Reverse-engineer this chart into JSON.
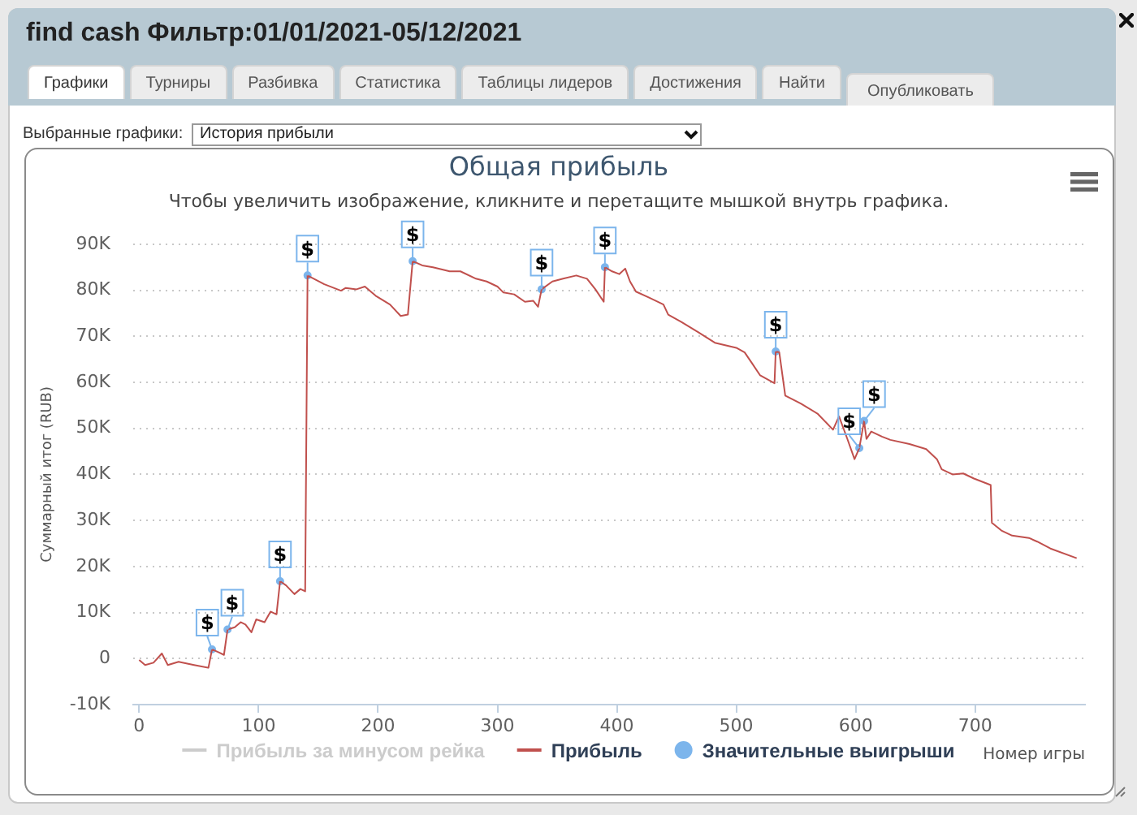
{
  "chart_data": {
    "type": "line",
    "title": "Общая прибыль",
    "subtitle": "Чтобы увеличить изображение, кликните и перетащите мышкой внутрь графика.",
    "xlabel": "Номер игры",
    "ylabel": "Суммарный итог (RUB)",
    "annotations": [
      "find cash Фильтр:01/01/2021-05/12/2021",
      "Графики",
      "Турниры",
      "Разбивка",
      "Статистика",
      "Таблицы лидеров",
      "Достижения",
      "Найти",
      "Опубликовать",
      "Выбранные графики:",
      "История прибыли"
    ],
    "series": [
      {
        "name": "Прибыль за минусом рейка",
        "color": "#cccccc"
      },
      {
        "name": "Прибыль",
        "color": "#c0504d",
        "marker": "none",
        "x": [
          0,
          5,
          12,
          19,
          24,
          33,
          46,
          58,
          61,
          67,
          71,
          74,
          80,
          85,
          89,
          94,
          98,
          105,
          110,
          115,
          118,
          123,
          130,
          135,
          139,
          141,
          155,
          169,
          173,
          182,
          189,
          198,
          210,
          219,
          225,
          229,
          237,
          246,
          260,
          269,
          282,
          291,
          300,
          305,
          314,
          323,
          330,
          334,
          337,
          346,
          355,
          366,
          375,
          382,
          389,
          390,
          396,
          402,
          407,
          411,
          416,
          427,
          439,
          443,
          454,
          468,
          482,
          500,
          507,
          513,
          520,
          532,
          533,
          536,
          541,
          554,
          568,
          581,
          586,
          593,
          599,
          603,
          607,
          609,
          613,
          622,
          629,
          645,
          659,
          668,
          672,
          681,
          690,
          699,
          713,
          714,
          722,
          731,
          745,
          752,
          763,
          785
        ],
        "values": [
          -300,
          -1400,
          -900,
          1100,
          -1400,
          -700,
          -1400,
          -2000,
          2000,
          1300,
          800,
          6300,
          6800,
          7900,
          7400,
          5700,
          8500,
          7900,
          10200,
          9600,
          16800,
          15900,
          14000,
          15100,
          14600,
          83200,
          81300,
          79900,
          80500,
          80200,
          80800,
          78800,
          76900,
          74400,
          74700,
          86300,
          85400,
          85000,
          84100,
          84100,
          82500,
          81900,
          80800,
          79500,
          79100,
          77500,
          77700,
          76400,
          80200,
          81900,
          82500,
          83200,
          82500,
          80200,
          77500,
          85000,
          84100,
          83500,
          84700,
          81900,
          79700,
          78400,
          76900,
          74700,
          73100,
          70900,
          68600,
          67500,
          66500,
          64200,
          61500,
          59800,
          66700,
          66500,
          57100,
          55400,
          53200,
          49700,
          52600,
          47700,
          43300,
          45700,
          51600,
          47700,
          49300,
          48200,
          47500,
          46600,
          45500,
          43300,
          41100,
          40000,
          40200,
          39100,
          37700,
          29500,
          27800,
          26700,
          26200,
          25400,
          23900,
          21800
        ]
      },
      {
        "name": "Значительные выигрыши",
        "type": "scatter",
        "color": "#7cb5ec",
        "marker": "circle",
        "x": [
          61,
          74,
          118,
          141,
          229,
          337,
          390,
          533,
          603,
          607
        ],
        "values": [
          2000,
          6300,
          16800,
          83200,
          86300,
          80200,
          85000,
          66700,
          45700,
          51600
        ],
        "value_labels": [
          "$",
          "$",
          "$",
          "$",
          "$",
          "$",
          "$",
          "$",
          "$",
          "$"
        ]
      }
    ],
    "xlim": [
      -5,
      792
    ],
    "xticks": [
      0,
      100,
      200,
      300,
      400,
      500,
      600,
      700
    ],
    "ylim": [
      -10000,
      90000
    ],
    "yticks": [
      {
        "value": -10000,
        "label": "-10K"
      },
      0,
      {
        "value": 10000,
        "label": "10K"
      },
      {
        "value": 20000,
        "label": "20K"
      },
      {
        "value": 30000,
        "label": "30K"
      },
      {
        "value": 40000,
        "label": "40K"
      },
      {
        "value": 50000,
        "label": "50K"
      },
      {
        "value": 60000,
        "label": "60K"
      },
      {
        "value": 70000,
        "label": "70K"
      },
      {
        "value": 80000,
        "label": "80K"
      },
      {
        "value": 90000,
        "label": "90K"
      }
    ],
    "grid": "y",
    "legend": "bottom"
  }
}
